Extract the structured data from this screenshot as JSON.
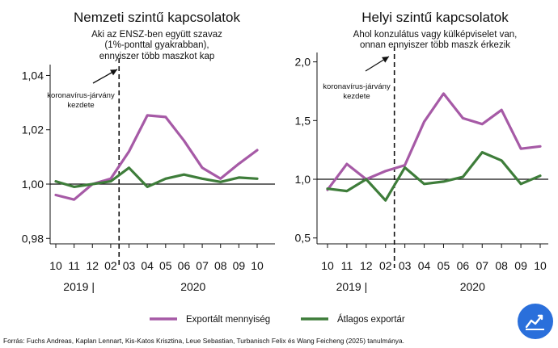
{
  "colors": {
    "export_volume": "#a65aa6",
    "avg_price": "#3e7d3a",
    "axis": "#111111",
    "logo": "#2a6fdb"
  },
  "chart_data": [
    {
      "type": "line",
      "title": "Nemzeti szintű kapcsolatok",
      "subtitle": [
        "Aki az ENSZ-ben együtt szavaz",
        "(1%-ponttal gyakrabban),",
        "ennyiszer több maszkot kap"
      ],
      "categories": [
        "10",
        "11",
        "12",
        "02",
        "03",
        "04",
        "05",
        "06",
        "07",
        "08",
        "09",
        "10"
      ],
      "year_labels": [
        "2019 |",
        "2020"
      ],
      "ylim": [
        0.978,
        1.044
      ],
      "yticks": [
        0.98,
        1.0,
        1.02,
        1.04
      ],
      "ytick_labels": [
        "0,98",
        "1,00",
        "1,02",
        "1,04"
      ],
      "reference_line": 1.0,
      "event_after_index": 3,
      "event_label": [
        "koronavírus-járvány",
        "kezdete"
      ],
      "series": [
        {
          "name": "Exportált mennyiség",
          "values": [
            0.996,
            0.9943,
            1.0,
            1.002,
            1.012,
            1.0253,
            1.0247,
            1.016,
            1.006,
            1.002,
            1.0075,
            1.0125
          ]
        },
        {
          "name": "Átlagos exportár",
          "values": [
            1.001,
            0.999,
            1.0,
            1.001,
            1.006,
            0.999,
            1.002,
            1.0035,
            1.002,
            1.0008,
            1.0024,
            1.002
          ]
        }
      ]
    },
    {
      "type": "line",
      "title": "Helyi szintű kapcsolatok",
      "subtitle": [
        "Ahol konzulátus vagy külképviselet van,",
        "onnan ennyiszer több maszk érkezik"
      ],
      "categories": [
        "10",
        "11",
        "12",
        "02",
        "03",
        "04",
        "05",
        "06",
        "07",
        "08",
        "09",
        "10"
      ],
      "year_labels": [
        "2019 |",
        "2020"
      ],
      "ylim": [
        0.45,
        2.08
      ],
      "yticks": [
        0.5,
        1.0,
        1.5,
        2.0
      ],
      "ytick_labels": [
        "0,5",
        "1,0",
        "1,5",
        "2,0"
      ],
      "reference_line": 1.0,
      "event_after_index": 3,
      "event_label": [
        "koronavírus-járvány",
        "kezdete"
      ],
      "series": [
        {
          "name": "Exportált mennyiség",
          "values": [
            0.91,
            1.13,
            1.0,
            1.07,
            1.12,
            1.49,
            1.73,
            1.52,
            1.47,
            1.59,
            1.26,
            1.28
          ]
        },
        {
          "name": "Átlagos exportár",
          "values": [
            0.92,
            0.9,
            1.0,
            0.82,
            1.1,
            0.96,
            0.98,
            1.02,
            1.23,
            1.16,
            0.96,
            1.03
          ]
        }
      ]
    }
  ],
  "legend": {
    "items": [
      "Exportált mennyiség",
      "Átlagos exportár"
    ]
  },
  "source": "Forrás: Fuchs Andreas, Kaplan Lennart, Kis-Katos Krisztina, Leue Sebastian, Turbanisch Felix és Wang Feicheng (2025) tanulmánya."
}
